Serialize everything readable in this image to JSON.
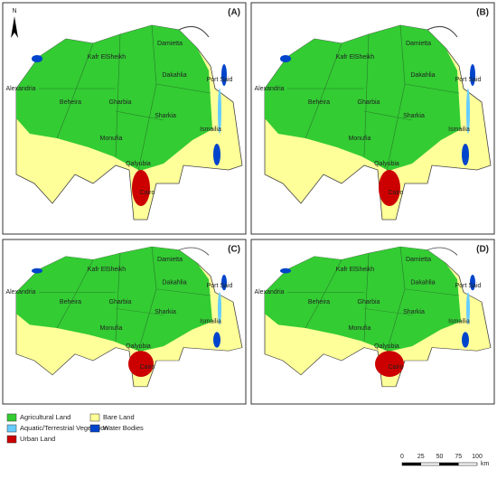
{
  "panels": [
    {
      "label": "(A)",
      "places": [
        "Kafr ElSheikh",
        "Damietta",
        "Port Said",
        "Dakahlia",
        "Alexandria",
        "Beheira",
        "Gharbia",
        "Sharkia",
        "Ismailia",
        "Monufia",
        "Qalyubia",
        "Cairo"
      ]
    },
    {
      "label": "(B)",
      "places": [
        "Kafr ElSheikh",
        "Damietta",
        "Port Said",
        "Dakahlia",
        "Alexandria",
        "Beheira",
        "Gharbia",
        "Sharkia",
        "Ismailia",
        "Monufia",
        "Qalyubia",
        "Cairo"
      ]
    },
    {
      "label": "(C)",
      "places": [
        "Kafr ElSheikh",
        "Damietta",
        "Port Said",
        "Dakahlia",
        "Alexandria",
        "Beheira",
        "Gharbia",
        "Sharkia",
        "Ismailia",
        "Monufia",
        "Qalyubia",
        "Cairo"
      ]
    },
    {
      "label": "(D)",
      "places": [
        "Kafr ElSheikh",
        "Damietta",
        "Port Said",
        "Dakahlia",
        "Alexandria",
        "Beheira",
        "Gharbia",
        "Sharkia",
        "Ismailia",
        "Monufia",
        "Qalyubia",
        "Cairo"
      ]
    }
  ],
  "north": "N",
  "legend": [
    {
      "label": "Agricultural Land",
      "color": "#33cc33"
    },
    {
      "label": "Aquatic/Terrestrial Vegetation",
      "color": "#66ccff"
    },
    {
      "label": "Urban Land",
      "color": "#cc0000"
    },
    {
      "label": "Bare Land",
      "color": "#ffff99"
    },
    {
      "label": "Water Bodies",
      "color": "#0044cc"
    }
  ],
  "scale": {
    "ticks": [
      0,
      25,
      50,
      75,
      100
    ],
    "unit": "km"
  }
}
